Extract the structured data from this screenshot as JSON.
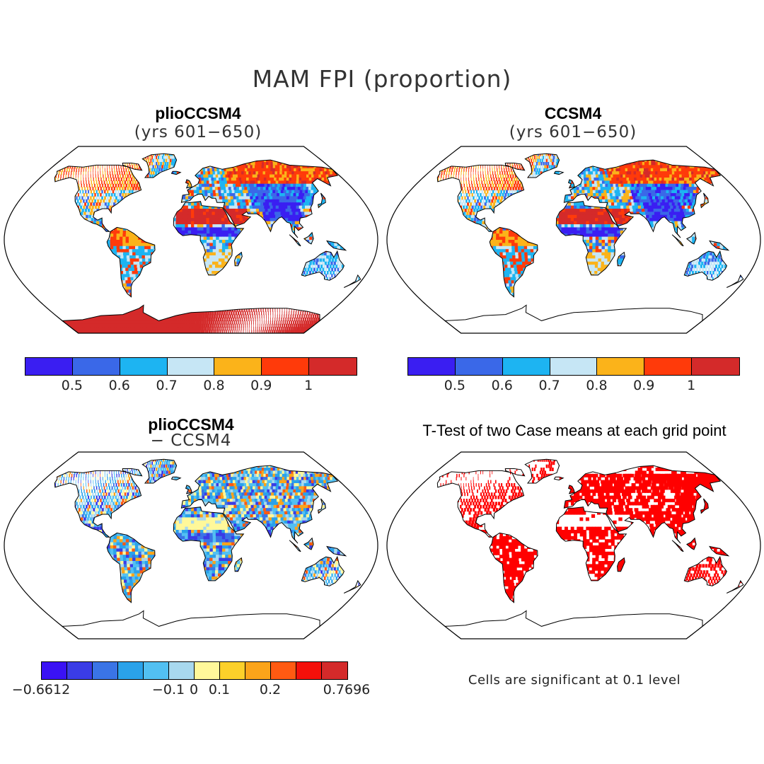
{
  "title": "MAM FPI (proportion)",
  "panels": [
    {
      "title": "plioCCSM4",
      "subtitle": "(yrs 601−650)",
      "colorbar": {
        "colors": [
          "#3a1ef2",
          "#3a68e8",
          "#1db4f2",
          "#c6e6f5",
          "#fbb31a",
          "#ff3a0a",
          "#d42a2a"
        ],
        "ticks": [
          "0.5",
          "0.6",
          "0.7",
          "0.8",
          "0.9",
          "1"
        ]
      }
    },
    {
      "title": "CCSM4",
      "subtitle": "(yrs 601−650)",
      "colorbar": {
        "colors": [
          "#3a1ef2",
          "#3a68e8",
          "#1db4f2",
          "#c6e6f5",
          "#fbb31a",
          "#ff3a0a",
          "#d42a2a"
        ],
        "ticks": [
          "0.5",
          "0.6",
          "0.7",
          "0.8",
          "0.9",
          "1"
        ]
      }
    },
    {
      "title": "plioCCSM4",
      "subtitle": "− CCSM4",
      "colorbar": {
        "colors": [
          "#3a12f4",
          "#3a3ce6",
          "#3a74e6",
          "#2aa2ea",
          "#52c0f2",
          "#a8d8ee",
          "#fff89a",
          "#fcd02a",
          "#fba41a",
          "#ff5a12",
          "#f4100a",
          "#d42a2a"
        ],
        "ticks": [
          "−0.6612",
          "−0.1",
          "0",
          "0.1",
          "0.2",
          "0.7696"
        ]
      }
    },
    {
      "title": "T-Test of two Case means at each grid point",
      "note": "Cells are significant at 0.1 level",
      "fill_color": "#ff0000"
    }
  ]
}
